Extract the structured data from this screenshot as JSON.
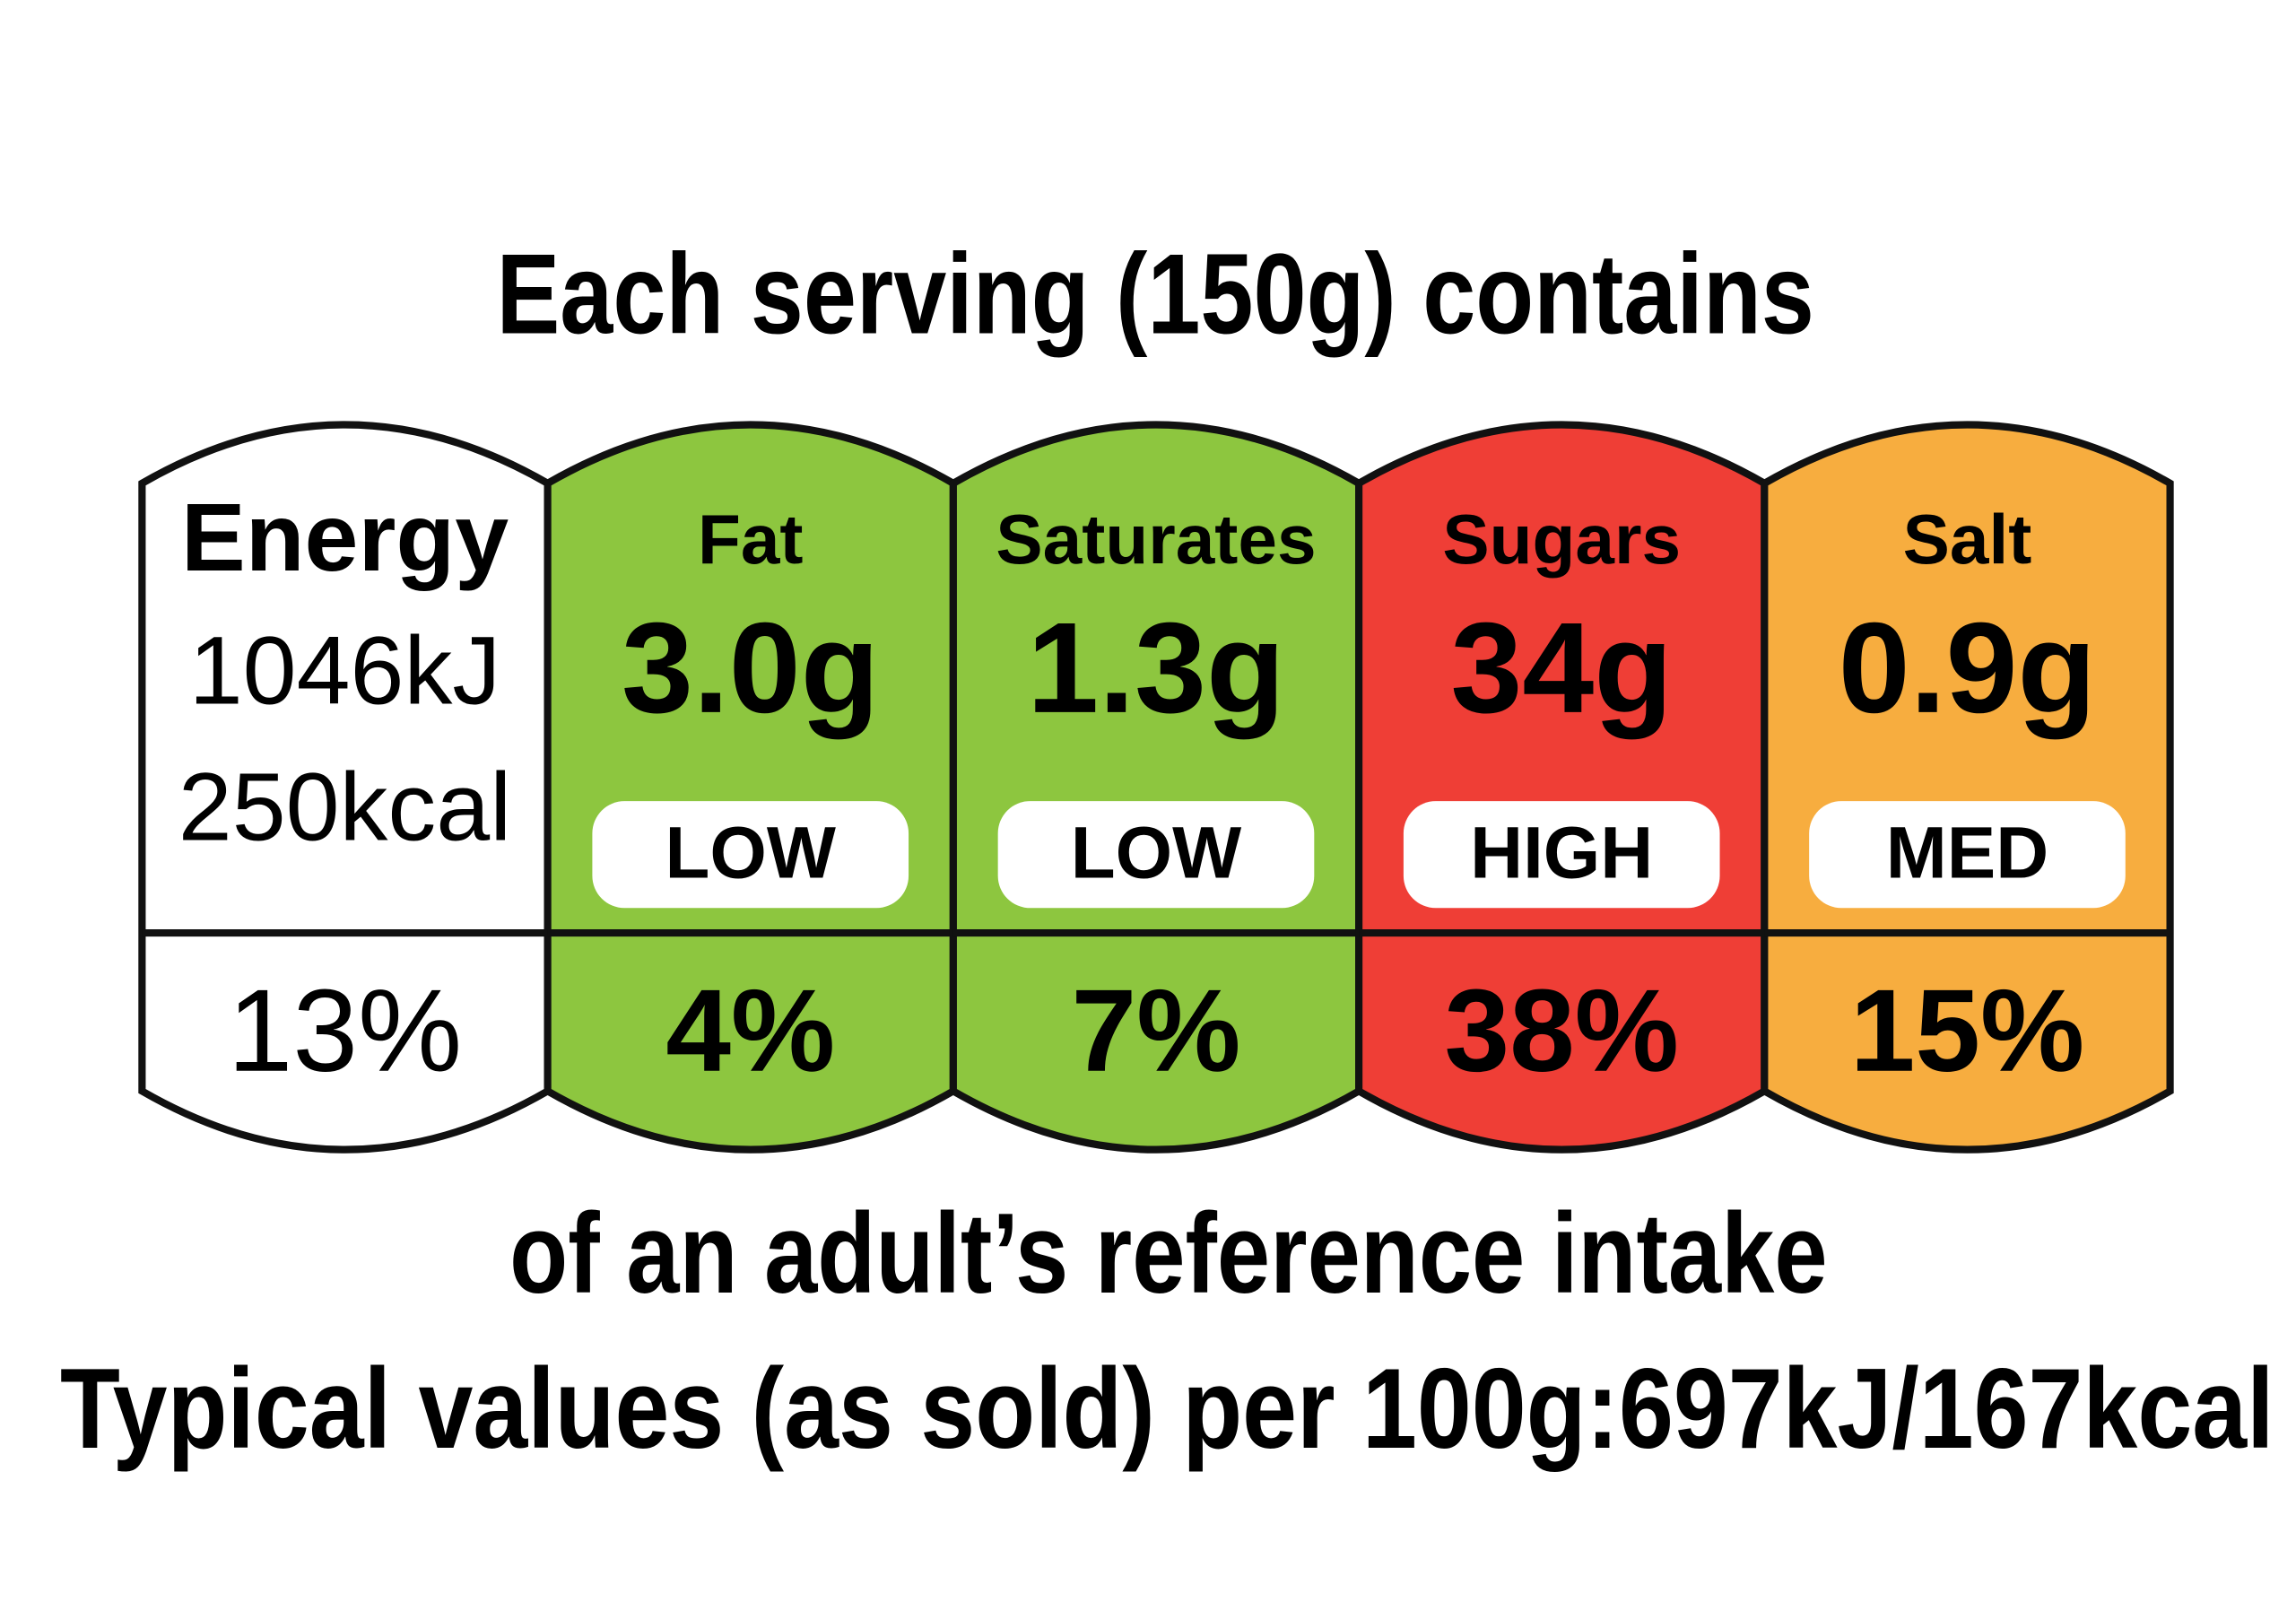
{
  "header": {
    "title": "Each serving (150g) contains"
  },
  "columns": [
    {
      "name": "Energy",
      "lines": [
        "1046kJ",
        "250kcal"
      ],
      "percent": "13%"
    },
    {
      "name": "Fat",
      "amount": "3.0g",
      "level": "LOW",
      "percent": "4%"
    },
    {
      "name": "Saturates",
      "amount": "1.3g",
      "level": "LOW",
      "percent": "7%"
    },
    {
      "name": "Sugars",
      "amount": "34g",
      "level": "HIGH",
      "percent": "38%"
    },
    {
      "name": "Salt",
      "amount": "0.9g",
      "level": "MED",
      "percent": "15%"
    }
  ],
  "footer": {
    "note": "of an adult’s reference intake",
    "typical": "Typical values (as sold) per 100g:697kJ/167kcal"
  }
}
